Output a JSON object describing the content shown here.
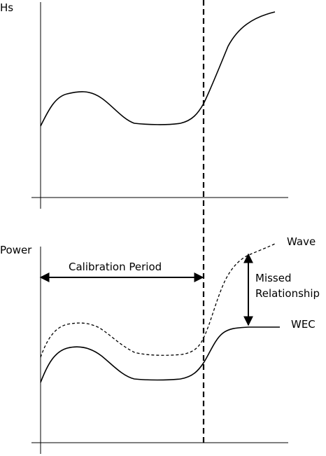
{
  "top_plot": {
    "y_label": "Hs"
  },
  "bottom_plot": {
    "y_label": "Power",
    "calibration_label": "Calibration Period",
    "wave_label": "Wave",
    "wec_label": "WEC",
    "missed_label_line1": "Missed",
    "missed_label_line2": "Relationship"
  }
}
